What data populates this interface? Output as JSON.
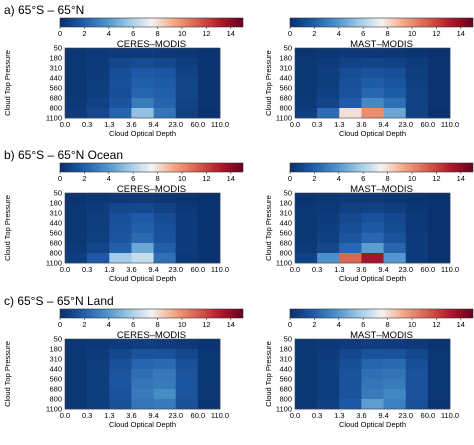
{
  "colorbar": {
    "ticks": [
      "0",
      "2",
      "4",
      "6",
      "8",
      "10",
      "12",
      "14"
    ],
    "min": 0,
    "max": 15,
    "colors": [
      "#08306b",
      "#1e5ba8",
      "#4a90c8",
      "#9cc8e6",
      "#f4f4f4",
      "#f4a582",
      "#d6604d",
      "#b2182b",
      "#67001f"
    ]
  },
  "axes": {
    "xlabel": "Cloud Optical Depth",
    "ylabel": "Cloud Top Pressure",
    "x_ticks": [
      "0.0",
      "0.3",
      "1.3",
      "3.6",
      "9.4",
      "23.0",
      "60.0",
      "110.0"
    ],
    "y_ticks": [
      "50",
      "180",
      "310",
      "440",
      "560",
      "680",
      "800",
      "1100"
    ]
  },
  "rows": [
    {
      "label": "a) 65°S – 65°N"
    },
    {
      "label": "b) 65°S – 65°N Ocean"
    },
    {
      "label": "c) 65°S – 65°N Land"
    }
  ],
  "chart_data": [
    {
      "type": "heatmap",
      "title": "CERES–MODIS",
      "row": 0,
      "values": [
        [
          0.3,
          0.4,
          0.5,
          0.5,
          0.4,
          0.3,
          0.2
        ],
        [
          0.3,
          0.5,
          1.0,
          1.2,
          1.0,
          0.6,
          0.2
        ],
        [
          0.3,
          0.5,
          1.3,
          1.8,
          1.6,
          0.8,
          0.2
        ],
        [
          0.3,
          0.6,
          1.4,
          2.0,
          1.9,
          0.9,
          0.2
        ],
        [
          0.3,
          0.6,
          1.3,
          2.2,
          2.0,
          0.9,
          0.2
        ],
        [
          0.4,
          0.8,
          1.6,
          3.0,
          2.2,
          0.8,
          0.2
        ],
        [
          0.5,
          1.0,
          2.2,
          5.4,
          2.8,
          0.7,
          0.1
        ]
      ]
    },
    {
      "type": "heatmap",
      "title": "MAST–MODIS",
      "row": 0,
      "values": [
        [
          0.2,
          0.3,
          0.4,
          0.4,
          0.3,
          0.2,
          0.1
        ],
        [
          0.3,
          0.5,
          0.8,
          0.9,
          0.8,
          0.5,
          0.2
        ],
        [
          0.3,
          0.6,
          1.2,
          1.5,
          1.3,
          0.6,
          0.2
        ],
        [
          0.3,
          0.6,
          1.4,
          1.9,
          1.6,
          0.7,
          0.2
        ],
        [
          0.3,
          0.7,
          1.5,
          2.3,
          1.9,
          0.8,
          0.2
        ],
        [
          0.4,
          0.9,
          1.9,
          3.5,
          2.6,
          0.8,
          0.2
        ],
        [
          0.6,
          2.5,
          8.0,
          10.0,
          4.5,
          0.8,
          0.1
        ]
      ]
    },
    {
      "type": "heatmap",
      "title": "CERES–MODIS",
      "row": 1,
      "values": [
        [
          0.2,
          0.3,
          0.4,
          0.4,
          0.3,
          0.2,
          0.1
        ],
        [
          0.3,
          0.5,
          1.0,
          1.1,
          0.8,
          0.4,
          0.1
        ],
        [
          0.3,
          0.6,
          1.4,
          1.8,
          1.2,
          0.5,
          0.1
        ],
        [
          0.3,
          0.6,
          1.5,
          2.0,
          1.4,
          0.5,
          0.1
        ],
        [
          0.3,
          0.7,
          1.6,
          2.4,
          1.5,
          0.5,
          0.1
        ],
        [
          0.4,
          0.9,
          2.0,
          4.5,
          2.0,
          0.5,
          0.1
        ],
        [
          0.6,
          1.8,
          5.8,
          6.5,
          2.6,
          0.4,
          0.1
        ]
      ]
    },
    {
      "type": "heatmap",
      "title": "MAST–MODIS",
      "row": 1,
      "values": [
        [
          0.2,
          0.3,
          0.4,
          0.4,
          0.3,
          0.2,
          0.1
        ],
        [
          0.3,
          0.4,
          0.7,
          0.8,
          0.6,
          0.3,
          0.1
        ],
        [
          0.3,
          0.5,
          1.1,
          1.4,
          1.0,
          0.4,
          0.1
        ],
        [
          0.3,
          0.6,
          1.3,
          1.8,
          1.2,
          0.4,
          0.1
        ],
        [
          0.3,
          0.7,
          1.6,
          2.3,
          1.5,
          0.5,
          0.1
        ],
        [
          0.4,
          1.0,
          2.3,
          4.2,
          2.2,
          0.5,
          0.1
        ],
        [
          0.8,
          3.8,
          11.0,
          13.5,
          4.0,
          0.5,
          0.1
        ]
      ]
    },
    {
      "type": "heatmap",
      "title": "CERES–MODIS",
      "row": 2,
      "values": [
        [
          0.3,
          0.4,
          0.5,
          0.6,
          0.5,
          0.4,
          0.2
        ],
        [
          0.3,
          0.5,
          1.0,
          1.5,
          1.5,
          1.0,
          0.3
        ],
        [
          0.3,
          0.6,
          1.4,
          2.2,
          2.4,
          1.4,
          0.3
        ],
        [
          0.3,
          0.6,
          1.6,
          2.6,
          2.9,
          1.6,
          0.3
        ],
        [
          0.3,
          0.6,
          1.6,
          2.8,
          3.0,
          1.6,
          0.3
        ],
        [
          0.3,
          0.6,
          1.5,
          3.0,
          3.6,
          1.6,
          0.3
        ],
        [
          0.3,
          0.6,
          1.4,
          2.8,
          3.0,
          1.4,
          0.2
        ]
      ]
    },
    {
      "type": "heatmap",
      "title": "MAST–MODIS",
      "row": 2,
      "values": [
        [
          0.3,
          0.4,
          0.5,
          0.6,
          0.5,
          0.4,
          0.2
        ],
        [
          0.3,
          0.5,
          1.0,
          1.5,
          1.5,
          1.0,
          0.3
        ],
        [
          0.3,
          0.6,
          1.3,
          2.2,
          2.4,
          1.3,
          0.3
        ],
        [
          0.3,
          0.6,
          1.5,
          2.6,
          2.8,
          1.5,
          0.3
        ],
        [
          0.3,
          0.6,
          1.5,
          2.8,
          3.0,
          1.5,
          0.3
        ],
        [
          0.3,
          0.6,
          1.5,
          3.0,
          3.4,
          1.5,
          0.3
        ],
        [
          0.3,
          0.7,
          1.8,
          4.2,
          3.2,
          1.4,
          0.2
        ]
      ]
    }
  ]
}
